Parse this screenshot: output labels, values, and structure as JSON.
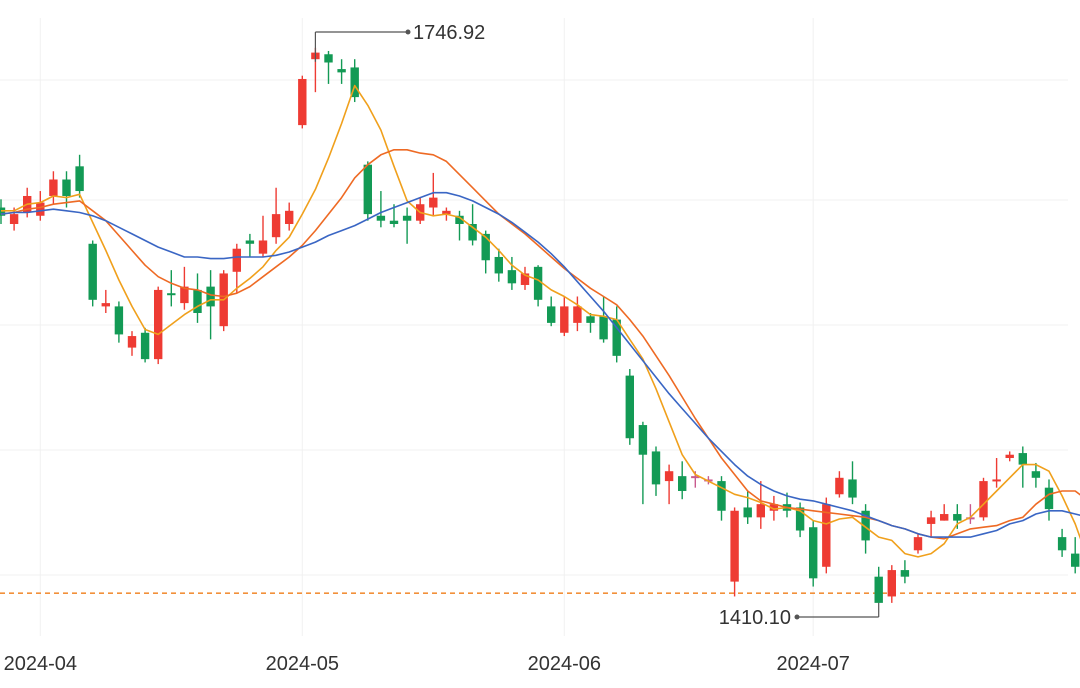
{
  "chart_data": {
    "type": "candlestick",
    "title": "",
    "xlabel": "",
    "ylabel": "",
    "grid": true,
    "ylim": [
      1390,
      1765
    ],
    "colors": {
      "up": "#ee3b33",
      "down": "#139a55",
      "doji": "#c95a8e",
      "ma_short": "#f0a01c",
      "ma_mid": "#ee6a24",
      "ma_long": "#3a66c4",
      "ref_line": "#f2903a",
      "grid": "#f1f1f1"
    },
    "x_ticks": [
      {
        "label": "2024-04",
        "index": 3
      },
      {
        "label": "2024-05",
        "index": 23
      },
      {
        "label": "2024-06",
        "index": 43
      },
      {
        "label": "2024-07",
        "index": 62
      }
    ],
    "annotations": {
      "high": {
        "label": "1746.92",
        "value": 1746.92,
        "index": 24
      },
      "low": {
        "label": "1410.10",
        "value": 1410.1,
        "index": 67
      }
    },
    "reference_line": {
      "value": 1416
    },
    "candles": [
      [
        1650,
        1645,
        1655,
        1640
      ],
      [
        1640,
        1646,
        1650,
        1636
      ],
      [
        1647,
        1657,
        1662,
        1644
      ],
      [
        1645,
        1653,
        1660,
        1642
      ],
      [
        1657,
        1667,
        1672,
        1652
      ],
      [
        1667,
        1657,
        1672,
        1650
      ],
      [
        1675,
        1660,
        1682,
        1656
      ],
      [
        1628,
        1594,
        1630,
        1590
      ],
      [
        1590,
        1592,
        1600,
        1586
      ],
      [
        1590,
        1573,
        1593,
        1568
      ],
      [
        1565,
        1572,
        1575,
        1560
      ],
      [
        1574,
        1558,
        1577,
        1556
      ],
      [
        1558,
        1600,
        1602,
        1555
      ],
      [
        1598,
        1597,
        1612,
        1590
      ],
      [
        1592,
        1602,
        1614,
        1588
      ],
      [
        1600,
        1586,
        1610,
        1580
      ],
      [
        1602,
        1590,
        1612,
        1570
      ],
      [
        1578,
        1610,
        1612,
        1575
      ],
      [
        1611,
        1625,
        1628,
        1598
      ],
      [
        1630,
        1628,
        1634,
        1620
      ],
      [
        1622,
        1630,
        1645,
        1620
      ],
      [
        1632,
        1646,
        1662,
        1628
      ],
      [
        1640,
        1648,
        1653,
        1636
      ],
      [
        1700,
        1728,
        1730,
        1698
      ],
      [
        1740,
        1744,
        1746.92,
        1720
      ],
      [
        1743,
        1738,
        1745,
        1725
      ],
      [
        1734,
        1732,
        1740,
        1725
      ],
      [
        1735,
        1717,
        1740,
        1714
      ],
      [
        1676,
        1646,
        1678,
        1642
      ],
      [
        1645,
        1642,
        1660,
        1638
      ],
      [
        1642,
        1640,
        1652,
        1638
      ],
      [
        1645,
        1642,
        1650,
        1628
      ],
      [
        1642,
        1652,
        1656,
        1640
      ],
      [
        1650,
        1656,
        1671,
        1645
      ],
      [
        1646,
        1648,
        1650,
        1642
      ],
      [
        1645,
        1640,
        1648,
        1630
      ],
      [
        1640,
        1630,
        1652,
        1627
      ],
      [
        1634,
        1618,
        1636,
        1610
      ],
      [
        1620,
        1610,
        1625,
        1605
      ],
      [
        1612,
        1604,
        1620,
        1600
      ],
      [
        1603,
        1610,
        1614,
        1600
      ],
      [
        1614,
        1594,
        1615,
        1590
      ],
      [
        1590,
        1580,
        1596,
        1578
      ],
      [
        1574,
        1590,
        1596,
        1572
      ],
      [
        1580,
        1590,
        1596,
        1575
      ],
      [
        1584,
        1580,
        1586,
        1574
      ],
      [
        1584,
        1570,
        1596,
        1568
      ],
      [
        1582,
        1560,
        1590,
        1556
      ],
      [
        1548,
        1510,
        1552,
        1506
      ],
      [
        1518,
        1500,
        1520,
        1470
      ],
      [
        1502,
        1482,
        1505,
        1475
      ],
      [
        1484,
        1490,
        1494,
        1470
      ],
      [
        1487,
        1478,
        1496,
        1473
      ],
      [
        1487,
        1487,
        1490,
        1480
      ],
      [
        1485,
        1485,
        1487,
        1482
      ],
      [
        1484,
        1466,
        1487,
        1460
      ],
      [
        1423,
        1466,
        1468,
        1414
      ],
      [
        1468,
        1462,
        1478,
        1458
      ],
      [
        1462,
        1470,
        1484,
        1455
      ],
      [
        1466,
        1470,
        1475,
        1460
      ],
      [
        1470,
        1466,
        1477,
        1462
      ],
      [
        1468,
        1454,
        1471,
        1450
      ],
      [
        1456,
        1425,
        1460,
        1420
      ],
      [
        1432,
        1470,
        1474,
        1428
      ],
      [
        1476,
        1486,
        1490,
        1474
      ],
      [
        1485,
        1474,
        1496,
        1470
      ],
      [
        1466,
        1448,
        1470,
        1440
      ],
      [
        1426,
        1410.1,
        1432,
        1410.1
      ],
      [
        1414,
        1430,
        1433,
        1410.1
      ],
      [
        1430,
        1426,
        1436,
        1422
      ],
      [
        1442,
        1450,
        1452,
        1440
      ],
      [
        1458,
        1462,
        1466,
        1450
      ],
      [
        1460,
        1464,
        1470,
        1460
      ],
      [
        1464,
        1460,
        1470,
        1455
      ],
      [
        1462,
        1462,
        1470,
        1458
      ],
      [
        1462,
        1484,
        1486,
        1460
      ],
      [
        1484,
        1485,
        1498,
        1480
      ],
      [
        1498,
        1500,
        1502,
        1496
      ],
      [
        1501,
        1494,
        1505,
        1480
      ],
      [
        1490,
        1486,
        1495,
        1480
      ],
      [
        1480,
        1467,
        1485,
        1460
      ],
      [
        1450,
        1442,
        1455,
        1438
      ],
      [
        1440,
        1432,
        1450,
        1428
      ],
      [
        1430,
        1420,
        1440,
        1412
      ]
    ],
    "series": [
      {
        "type": "line",
        "values": [
          1648,
          1648,
          1652,
          1653,
          1657,
          1656,
          1658,
          1641,
          1624,
          1606,
          1590,
          1576,
          1573,
          1579,
          1585,
          1590,
          1594,
          1594,
          1601,
          1607,
          1614,
          1624,
          1632,
          1646,
          1661,
          1680,
          1701,
          1724,
          1712,
          1697,
          1675,
          1654,
          1647,
          1645,
          1646,
          1644,
          1638,
          1632,
          1624,
          1615,
          1609,
          1606,
          1600,
          1596,
          1591,
          1585,
          1584,
          1582,
          1570,
          1558,
          1540,
          1520,
          1500,
          1488,
          1484,
          1480,
          1476,
          1474,
          1471,
          1467,
          1468,
          1466,
          1460,
          1458,
          1461,
          1462,
          1456,
          1450,
          1448,
          1440,
          1438,
          1440,
          1446,
          1458,
          1462,
          1470,
          1478,
          1486,
          1494,
          1494,
          1490,
          1475,
          1458,
          1436
        ]
      },
      {
        "type": "line",
        "values": [
          1646,
          1647,
          1649,
          1650,
          1652,
          1653,
          1654,
          1648,
          1642,
          1633,
          1624,
          1615,
          1608,
          1604,
          1601,
          1600,
          1597,
          1596,
          1598,
          1602,
          1608,
          1614,
          1620,
          1627,
          1636,
          1646,
          1656,
          1668,
          1676,
          1682,
          1685,
          1685,
          1683,
          1682,
          1678,
          1670,
          1662,
          1654,
          1646,
          1640,
          1634,
          1627,
          1620,
          1613,
          1607,
          1601,
          1596,
          1591,
          1582,
          1572,
          1560,
          1548,
          1535,
          1522,
          1510,
          1498,
          1488,
          1478,
          1472,
          1470,
          1468,
          1467,
          1466,
          1465,
          1464,
          1463,
          1462,
          1460,
          1457,
          1455,
          1452,
          1450,
          1449,
          1452,
          1455,
          1456,
          1457,
          1460,
          1462,
          1470,
          1476,
          1478,
          1478,
          1472
        ]
      },
      {
        "type": "line",
        "values": [
          1646,
          1647,
          1647,
          1648,
          1649,
          1648,
          1647,
          1645,
          1642,
          1638,
          1634,
          1630,
          1626,
          1623,
          1620,
          1620,
          1619,
          1619,
          1620,
          1620,
          1620,
          1621,
          1623,
          1626,
          1629,
          1633,
          1636,
          1639,
          1643,
          1647,
          1650,
          1653,
          1656,
          1659,
          1659,
          1657,
          1654,
          1650,
          1646,
          1641,
          1635,
          1629,
          1622,
          1614,
          1605,
          1596,
          1587,
          1577,
          1567,
          1557,
          1547,
          1537,
          1528,
          1519,
          1510,
          1502,
          1494,
          1487,
          1482,
          1478,
          1475,
          1473,
          1472,
          1470,
          1468,
          1466,
          1463,
          1460,
          1457,
          1455,
          1452,
          1450,
          1450,
          1450,
          1450,
          1452,
          1454,
          1458,
          1460,
          1464,
          1466,
          1466,
          1464,
          1462
        ]
      }
    ]
  }
}
